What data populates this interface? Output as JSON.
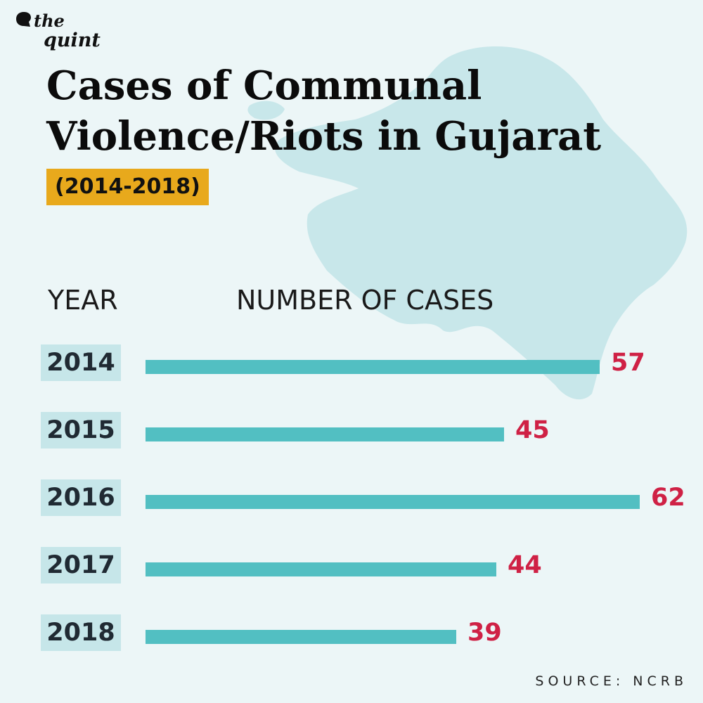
{
  "brand": {
    "line1": "the",
    "line2": "quint"
  },
  "header": {
    "title_line1": "Cases of Communal",
    "title_line2": "Violence/Riots in Gujarat",
    "subtitle": "(2014-2018)"
  },
  "columns": {
    "year": "YEAR",
    "cases": "NUMBER OF CASES"
  },
  "footer": {
    "source": "SOURCE: NCRB"
  },
  "colors": {
    "background": "#ecf6f7",
    "map": "#c8e7ea",
    "bar": "#52bfc2",
    "value": "#cf2145",
    "highlight": "#e8a91c",
    "year_box": "#c6e6e9"
  },
  "chart_data": {
    "type": "bar",
    "orientation": "horizontal",
    "title": "Cases of Communal Violence/Riots in Gujarat",
    "subtitle": "(2014-2018)",
    "xlabel": "NUMBER OF CASES",
    "ylabel": "YEAR",
    "categories": [
      "2014",
      "2015",
      "2016",
      "2017",
      "2018"
    ],
    "values": [
      57,
      45,
      62,
      44,
      39
    ],
    "xlim": [
      0,
      62
    ],
    "grid": false,
    "legend": "none",
    "data_labels": true
  }
}
